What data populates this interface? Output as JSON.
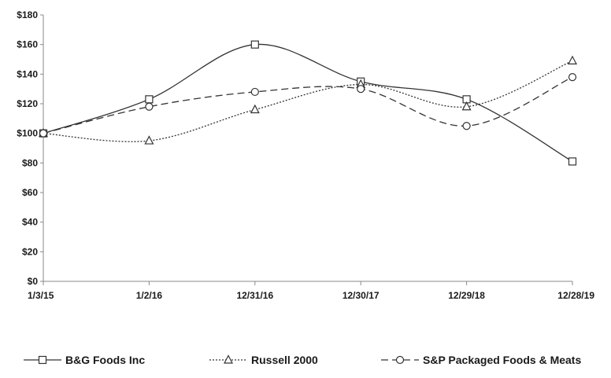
{
  "chart_data": {
    "type": "line",
    "categories": [
      "1/3/15",
      "1/2/16",
      "12/31/16",
      "12/30/17",
      "12/29/18",
      "12/28/19"
    ],
    "ylim": [
      0,
      180
    ],
    "yticks": [
      0,
      20,
      40,
      60,
      80,
      100,
      120,
      140,
      160,
      180
    ],
    "ytick_labels": [
      "$0",
      "$20",
      "$40",
      "$60",
      "$80",
      "$100",
      "$120",
      "$140",
      "$160",
      "$180"
    ],
    "grid": false,
    "legend_position": "bottom",
    "series": [
      {
        "name": "B&G Foods Inc",
        "marker": "square",
        "dash": "solid",
        "color": "#333333",
        "values": [
          100,
          123,
          160,
          135,
          123,
          81
        ]
      },
      {
        "name": "Russell 2000",
        "marker": "triangle",
        "dash": "dotted",
        "color": "#333333",
        "values": [
          100,
          95,
          116,
          133,
          118,
          149
        ]
      },
      {
        "name": "S&P Packaged Foods & Meats",
        "marker": "circle",
        "dash": "dashed",
        "color": "#333333",
        "values": [
          100,
          118,
          128,
          130,
          105,
          138
        ]
      }
    ]
  }
}
